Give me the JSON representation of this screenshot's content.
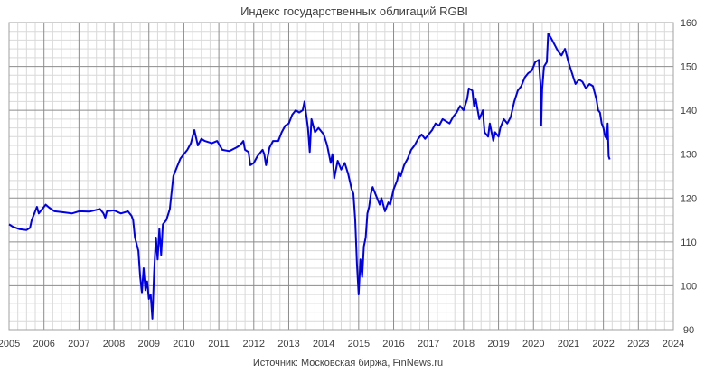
{
  "chart_data": {
    "type": "line",
    "title": "Индекс государственных облигаций RGBI",
    "source": "Источник: Московская биржа, FinNews.ru",
    "xlim": [
      2005,
      2024
    ],
    "ylim": [
      90,
      160
    ],
    "x_ticks": [
      2005,
      2006,
      2007,
      2008,
      2009,
      2010,
      2011,
      2012,
      2013,
      2014,
      2015,
      2016,
      2017,
      2018,
      2019,
      2020,
      2021,
      2022,
      2023,
      2024
    ],
    "y_ticks": [
      90,
      100,
      110,
      120,
      130,
      140,
      150,
      160
    ],
    "grid": true,
    "y_axis_position": "right",
    "line_color": "#0000e6",
    "series": [
      {
        "values": [
          [
            2005.0,
            114.0
          ],
          [
            2005.1,
            113.5
          ],
          [
            2005.3,
            112.9
          ],
          [
            2005.5,
            112.7
          ],
          [
            2005.6,
            113.2
          ],
          [
            2005.65,
            115.0
          ],
          [
            2005.75,
            117.0
          ],
          [
            2005.8,
            118.0
          ],
          [
            2005.85,
            116.5
          ],
          [
            2005.95,
            117.5
          ],
          [
            2006.05,
            118.5
          ],
          [
            2006.15,
            117.8
          ],
          [
            2006.3,
            117.0
          ],
          [
            2006.5,
            116.8
          ],
          [
            2006.8,
            116.5
          ],
          [
            2007.0,
            117.0
          ],
          [
            2007.3,
            116.9
          ],
          [
            2007.6,
            117.5
          ],
          [
            2007.7,
            116.5
          ],
          [
            2007.75,
            115.5
          ],
          [
            2007.8,
            117.0
          ],
          [
            2008.0,
            117.2
          ],
          [
            2008.2,
            116.5
          ],
          [
            2008.4,
            117.0
          ],
          [
            2008.5,
            116.0
          ],
          [
            2008.55,
            115.0
          ],
          [
            2008.6,
            111.0
          ],
          [
            2008.7,
            108.0
          ],
          [
            2008.75,
            102.0
          ],
          [
            2008.8,
            98.5
          ],
          [
            2008.85,
            104.0
          ],
          [
            2008.9,
            99.0
          ],
          [
            2008.95,
            101.0
          ],
          [
            2009.0,
            97.0
          ],
          [
            2009.05,
            98.0
          ],
          [
            2009.1,
            92.5
          ],
          [
            2009.15,
            103.0
          ],
          [
            2009.2,
            111.0
          ],
          [
            2009.25,
            106.0
          ],
          [
            2009.3,
            113.0
          ],
          [
            2009.35,
            107.0
          ],
          [
            2009.4,
            114.0
          ],
          [
            2009.5,
            115.0
          ],
          [
            2009.6,
            117.5
          ],
          [
            2009.7,
            125.0
          ],
          [
            2009.8,
            127.0
          ],
          [
            2009.9,
            129.0
          ],
          [
            2010.0,
            130.0
          ],
          [
            2010.1,
            131.0
          ],
          [
            2010.2,
            132.5
          ],
          [
            2010.3,
            135.5
          ],
          [
            2010.4,
            132.0
          ],
          [
            2010.5,
            133.5
          ],
          [
            2010.6,
            133.0
          ],
          [
            2010.8,
            132.5
          ],
          [
            2010.95,
            133.0
          ],
          [
            2011.1,
            131.0
          ],
          [
            2011.3,
            130.7
          ],
          [
            2011.5,
            131.5
          ],
          [
            2011.6,
            132.0
          ],
          [
            2011.7,
            133.0
          ],
          [
            2011.75,
            131.0
          ],
          [
            2011.85,
            130.5
          ],
          [
            2011.9,
            127.5
          ],
          [
            2012.0,
            128.0
          ],
          [
            2012.1,
            129.5
          ],
          [
            2012.15,
            130.0
          ],
          [
            2012.25,
            131.0
          ],
          [
            2012.3,
            130.0
          ],
          [
            2012.35,
            127.5
          ],
          [
            2012.45,
            131.5
          ],
          [
            2012.55,
            133.0
          ],
          [
            2012.7,
            133.0
          ],
          [
            2012.8,
            135.0
          ],
          [
            2012.9,
            136.5
          ],
          [
            2013.0,
            137.0
          ],
          [
            2013.1,
            139.0
          ],
          [
            2013.2,
            140.0
          ],
          [
            2013.3,
            139.5
          ],
          [
            2013.4,
            140.0
          ],
          [
            2013.45,
            142.0
          ],
          [
            2013.5,
            139.0
          ],
          [
            2013.55,
            136.0
          ],
          [
            2013.6,
            130.5
          ],
          [
            2013.65,
            138.0
          ],
          [
            2013.75,
            135.0
          ],
          [
            2013.85,
            136.0
          ],
          [
            2013.95,
            135.0
          ],
          [
            2014.0,
            134.5
          ],
          [
            2014.1,
            132.0
          ],
          [
            2014.2,
            128.0
          ],
          [
            2014.25,
            130.0
          ],
          [
            2014.3,
            124.5
          ],
          [
            2014.4,
            128.5
          ],
          [
            2014.5,
            126.5
          ],
          [
            2014.6,
            128.0
          ],
          [
            2014.7,
            125.5
          ],
          [
            2014.8,
            122.0
          ],
          [
            2014.85,
            121.0
          ],
          [
            2014.9,
            115.0
          ],
          [
            2014.95,
            105.0
          ],
          [
            2015.0,
            98.0
          ],
          [
            2015.05,
            106.0
          ],
          [
            2015.1,
            102.0
          ],
          [
            2015.15,
            109.0
          ],
          [
            2015.2,
            111.0
          ],
          [
            2015.25,
            116.5
          ],
          [
            2015.3,
            118.0
          ],
          [
            2015.35,
            121.0
          ],
          [
            2015.4,
            122.5
          ],
          [
            2015.5,
            120.5
          ],
          [
            2015.6,
            118.5
          ],
          [
            2015.65,
            120.0
          ],
          [
            2015.75,
            117.0
          ],
          [
            2015.85,
            119.0
          ],
          [
            2015.9,
            118.5
          ],
          [
            2016.0,
            122.0
          ],
          [
            2016.1,
            124.0
          ],
          [
            2016.15,
            126.0
          ],
          [
            2016.2,
            125.0
          ],
          [
            2016.3,
            127.5
          ],
          [
            2016.4,
            129.0
          ],
          [
            2016.5,
            131.0
          ],
          [
            2016.6,
            132.0
          ],
          [
            2016.7,
            133.5
          ],
          [
            2016.8,
            134.5
          ],
          [
            2016.9,
            133.5
          ],
          [
            2017.0,
            134.5
          ],
          [
            2017.1,
            135.5
          ],
          [
            2017.2,
            137.0
          ],
          [
            2017.3,
            136.5
          ],
          [
            2017.4,
            138.0
          ],
          [
            2017.5,
            137.5
          ],
          [
            2017.6,
            137.0
          ],
          [
            2017.7,
            138.5
          ],
          [
            2017.8,
            139.5
          ],
          [
            2017.9,
            141.0
          ],
          [
            2018.0,
            140.0
          ],
          [
            2018.1,
            142.5
          ],
          [
            2018.15,
            145.0
          ],
          [
            2018.25,
            144.5
          ],
          [
            2018.3,
            141.0
          ],
          [
            2018.35,
            142.5
          ],
          [
            2018.45,
            138.0
          ],
          [
            2018.55,
            140.0
          ],
          [
            2018.6,
            135.0
          ],
          [
            2018.7,
            134.0
          ],
          [
            2018.75,
            137.0
          ],
          [
            2018.85,
            133.0
          ],
          [
            2018.9,
            135.0
          ],
          [
            2019.0,
            134.0
          ],
          [
            2019.05,
            136.0
          ],
          [
            2019.15,
            138.0
          ],
          [
            2019.25,
            137.0
          ],
          [
            2019.35,
            138.5
          ],
          [
            2019.45,
            142.0
          ],
          [
            2019.55,
            144.5
          ],
          [
            2019.65,
            145.5
          ],
          [
            2019.75,
            147.5
          ],
          [
            2019.85,
            148.5
          ],
          [
            2019.95,
            149.0
          ],
          [
            2020.05,
            151.0
          ],
          [
            2020.15,
            151.5
          ],
          [
            2020.2,
            146.0
          ],
          [
            2020.22,
            136.5
          ],
          [
            2020.25,
            145.0
          ],
          [
            2020.3,
            150.0
          ],
          [
            2020.38,
            151.0
          ],
          [
            2020.42,
            157.5
          ],
          [
            2020.5,
            156.5
          ],
          [
            2020.6,
            155.0
          ],
          [
            2020.7,
            153.5
          ],
          [
            2020.8,
            152.5
          ],
          [
            2020.9,
            154.0
          ],
          [
            2020.95,
            152.5
          ],
          [
            2021.0,
            151.0
          ],
          [
            2021.1,
            148.5
          ],
          [
            2021.2,
            146.0
          ],
          [
            2021.3,
            147.0
          ],
          [
            2021.4,
            146.5
          ],
          [
            2021.5,
            145.0
          ],
          [
            2021.6,
            146.0
          ],
          [
            2021.7,
            145.5
          ],
          [
            2021.8,
            142.5
          ],
          [
            2021.85,
            140.0
          ],
          [
            2021.9,
            139.5
          ],
          [
            2021.95,
            137.0
          ],
          [
            2022.0,
            136.0
          ],
          [
            2022.05,
            134.0
          ],
          [
            2022.1,
            133.5
          ],
          [
            2022.12,
            137.0
          ],
          [
            2022.15,
            129.5
          ],
          [
            2022.18,
            128.8
          ]
        ]
      }
    ]
  }
}
